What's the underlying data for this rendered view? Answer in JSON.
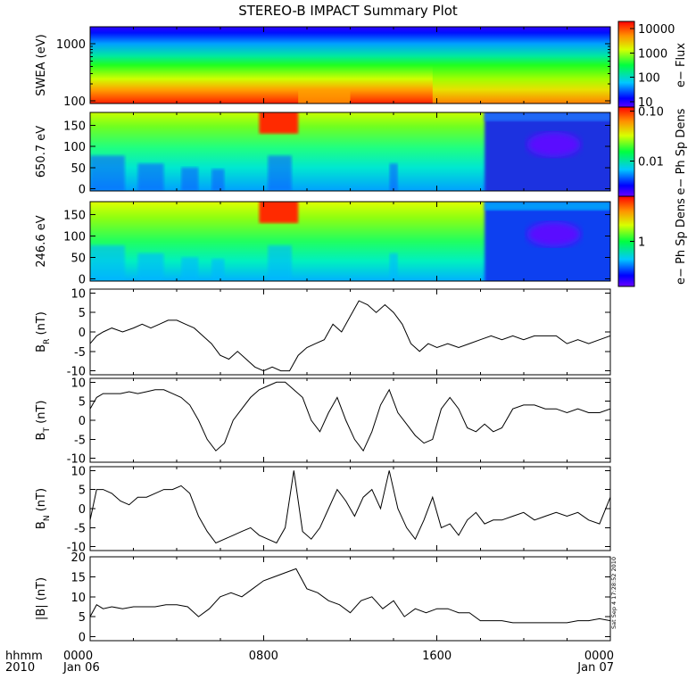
{
  "title": "STEREO-B IMPACT Summary Plot",
  "footer": {
    "hhmm": "hhmm",
    "year": "2010",
    "ticks": [
      {
        "hour": 0,
        "time": "0000",
        "date": "Jan 06"
      },
      {
        "hour": 8,
        "time": "0800",
        "date": ""
      },
      {
        "hour": 16,
        "time": "1600",
        "date": ""
      },
      {
        "hour": 24,
        "time": "0000",
        "date": "Jan 07"
      }
    ]
  },
  "timestamp": "Sat Sep  4 17:28:52 2010",
  "chart_data": [
    {
      "type": "heatmap",
      "id": "swea",
      "ylabel": "SWEA (eV)",
      "ylog": true,
      "ylim": [
        90,
        2000
      ],
      "yticks": [
        100,
        1000
      ],
      "ytick_labels": [
        "100",
        "1000"
      ],
      "x_range_hours": [
        0,
        24
      ],
      "colorbar": {
        "label": "e− Flux",
        "ticks": [
          "10",
          "100",
          "1000",
          "10000"
        ],
        "log": true,
        "range": [
          5,
          20000
        ]
      },
      "time_segments_hours": [
        0,
        5.5,
        9.6,
        12,
        15.8,
        18.2,
        22.5,
        24
      ],
      "hot_intensity": [
        0.88,
        0.92,
        0.85,
        0.86,
        0.8,
        0.72,
        0.72
      ]
    },
    {
      "type": "heatmap",
      "id": "pad650",
      "ylabel": "650.7 eV",
      "ylim": [
        -5,
        180
      ],
      "yticks": [
        0,
        50,
        100,
        150
      ],
      "x_range_hours": [
        0,
        24
      ],
      "colorbar": {
        "label": "e− Ph Sp Dens",
        "ticks": [
          "0.01",
          "0.10"
        ],
        "log": true,
        "range": [
          0.002,
          0.12
        ]
      },
      "regions": [
        {
          "t_start": 7.8,
          "t_end": 9.6,
          "pa_min": 130,
          "pa_max": 180,
          "level": 0.95
        },
        {
          "t_start": 18.2,
          "t_end": 24,
          "pa_min": 0,
          "pa_max": 180,
          "level": 0.08
        }
      ]
    },
    {
      "type": "heatmap",
      "id": "pad246",
      "ylabel": "246.6 eV",
      "ylim": [
        -5,
        180
      ],
      "yticks": [
        0,
        50,
        100,
        150
      ],
      "x_range_hours": [
        0,
        24
      ],
      "colorbar": {
        "label": "e− Ph Sp Dens",
        "ticks": [
          "1"
        ],
        "log": true,
        "range": [
          0.1,
          10
        ]
      },
      "regions": [
        {
          "t_start": 7.8,
          "t_end": 9.6,
          "pa_min": 130,
          "pa_max": 180,
          "level": 0.95
        },
        {
          "t_start": 18.2,
          "t_end": 24,
          "pa_min": 0,
          "pa_max": 180,
          "level": 0.1
        }
      ]
    },
    {
      "type": "line",
      "id": "br",
      "ylabel": "B_R (nT)",
      "ylabel_main": "B",
      "ylabel_sub": "R",
      "ylabel_unit": " (nT)",
      "ylim": [
        -11,
        11
      ],
      "yticks": [
        -10,
        -5,
        0,
        5,
        10
      ],
      "x": [
        0,
        0.3,
        0.6,
        1,
        1.5,
        2,
        2.4,
        2.8,
        3.2,
        3.6,
        4,
        4.4,
        4.8,
        5.2,
        5.6,
        6,
        6.4,
        6.8,
        7.2,
        7.6,
        8,
        8.4,
        8.8,
        9.2,
        9.6,
        10,
        10.4,
        10.8,
        11.2,
        11.6,
        12,
        12.4,
        12.8,
        13.2,
        13.6,
        14,
        14.4,
        14.8,
        15.2,
        15.6,
        16,
        16.5,
        17,
        17.5,
        18,
        18.5,
        19,
        19.5,
        20,
        20.5,
        21,
        21.5,
        22,
        22.5,
        23,
        23.5,
        24
      ],
      "y": [
        -3,
        -1,
        0,
        1,
        0,
        1,
        2,
        1,
        2,
        3,
        3,
        2,
        1,
        -1,
        -3,
        -6,
        -7,
        -5,
        -7,
        -9,
        -10,
        -9,
        -10,
        -10,
        -6,
        -4,
        -3,
        -2,
        2,
        0,
        4,
        8,
        7,
        5,
        7,
        5,
        2,
        -3,
        -5,
        -3,
        -4,
        -3,
        -4,
        -3,
        -2,
        -1,
        -2,
        -1,
        -2,
        -1,
        -1,
        -1,
        -3,
        -2,
        -3,
        -2,
        -1
      ]
    },
    {
      "type": "line",
      "id": "bt",
      "ylabel": "B_T (nT)",
      "ylabel_main": "B",
      "ylabel_sub": "T",
      "ylabel_unit": " (nT)",
      "ylim": [
        -11,
        11
      ],
      "yticks": [
        -10,
        -5,
        0,
        5,
        10
      ],
      "x": [
        0,
        0.3,
        0.6,
        1,
        1.4,
        1.8,
        2.2,
        2.6,
        3,
        3.4,
        3.8,
        4.2,
        4.6,
        5,
        5.4,
        5.8,
        6.2,
        6.6,
        7,
        7.4,
        7.8,
        8.2,
        8.6,
        9,
        9.4,
        9.8,
        10.2,
        10.6,
        11,
        11.4,
        11.8,
        12.2,
        12.6,
        13,
        13.4,
        13.8,
        14.2,
        14.6,
        15,
        15.4,
        15.8,
        16.2,
        16.6,
        17,
        17.4,
        17.8,
        18.2,
        18.6,
        19,
        19.5,
        20,
        20.5,
        21,
        21.5,
        22,
        22.5,
        23,
        23.5,
        24
      ],
      "y": [
        3,
        6,
        7,
        7,
        7,
        7.5,
        7,
        7.5,
        8,
        8,
        7,
        6,
        4,
        0,
        -5,
        -8,
        -6,
        0,
        3,
        6,
        8,
        9,
        10,
        10,
        8,
        6,
        0,
        -3,
        2,
        6,
        0,
        -5,
        -8,
        -3,
        4,
        8,
        2,
        -1,
        -4,
        -6,
        -5,
        3,
        6,
        3,
        -2,
        -3,
        -1,
        -3,
        -2,
        3,
        4,
        4,
        3,
        3,
        2,
        3,
        2,
        2,
        3
      ]
    },
    {
      "type": "line",
      "id": "bn",
      "ylabel": "B_N (nT)",
      "ylabel_main": "B",
      "ylabel_sub": "N",
      "ylabel_unit": " (nT)",
      "ylim": [
        -11,
        11
      ],
      "yticks": [
        -10,
        -5,
        0,
        5,
        10
      ],
      "x": [
        0,
        0.3,
        0.6,
        1,
        1.4,
        1.8,
        2.2,
        2.6,
        3,
        3.4,
        3.8,
        4.2,
        4.6,
        5,
        5.4,
        5.8,
        6.2,
        6.6,
        7,
        7.4,
        7.8,
        8.2,
        8.6,
        9,
        9.4,
        9.8,
        10.2,
        10.6,
        11,
        11.4,
        11.8,
        12.2,
        12.6,
        13,
        13.4,
        13.8,
        14.2,
        14.6,
        15,
        15.4,
        15.8,
        16.2,
        16.6,
        17,
        17.4,
        17.8,
        18.2,
        18.6,
        19,
        19.5,
        20,
        20.5,
        21,
        21.5,
        22,
        22.5,
        23,
        23.5,
        24
      ],
      "y": [
        -3,
        5,
        5,
        4,
        2,
        1,
        3,
        3,
        4,
        5,
        5,
        6,
        4,
        -2,
        -6,
        -9,
        -8,
        -7,
        -6,
        -5,
        -7,
        -8,
        -9,
        -5,
        10,
        -6,
        -8,
        -5,
        0,
        5,
        2,
        -2,
        3,
        5,
        0,
        10,
        0,
        -5,
        -8,
        -3,
        3,
        -5,
        -4,
        -7,
        -3,
        -1,
        -4,
        -3,
        -3,
        -2,
        -1,
        -3,
        -2,
        -1,
        -2,
        -1,
        -3,
        -4,
        3
      ]
    },
    {
      "type": "line",
      "id": "bmag",
      "ylabel": "|B| (nT)",
      "ylabel_main": "|B| (nT)",
      "ylim": [
        -1,
        20
      ],
      "yticks": [
        0,
        5,
        10,
        15,
        20
      ],
      "x": [
        0,
        0.3,
        0.6,
        1,
        1.5,
        2,
        2.5,
        3,
        3.5,
        4,
        4.5,
        5,
        5.5,
        6,
        6.5,
        7,
        7.5,
        8,
        8.5,
        9,
        9.5,
        10,
        10.5,
        11,
        11.5,
        12,
        12.5,
        13,
        13.5,
        14,
        14.5,
        15,
        15.5,
        16,
        16.5,
        17,
        17.5,
        18,
        18.5,
        19,
        19.5,
        20,
        20.5,
        21,
        21.5,
        22,
        22.5,
        23,
        23.5,
        24
      ],
      "y": [
        5,
        8,
        7,
        7.5,
        7,
        7.5,
        7.5,
        7.5,
        8,
        8,
        7.5,
        5,
        7,
        10,
        11,
        10,
        12,
        14,
        15,
        16,
        17,
        12,
        11,
        9,
        8,
        6,
        9,
        10,
        7,
        9,
        5,
        7,
        6,
        7,
        7,
        6,
        6,
        4,
        4,
        4,
        3.5,
        3.5,
        3.5,
        3.5,
        3.5,
        3.5,
        4,
        4,
        4.5,
        4
      ]
    }
  ]
}
